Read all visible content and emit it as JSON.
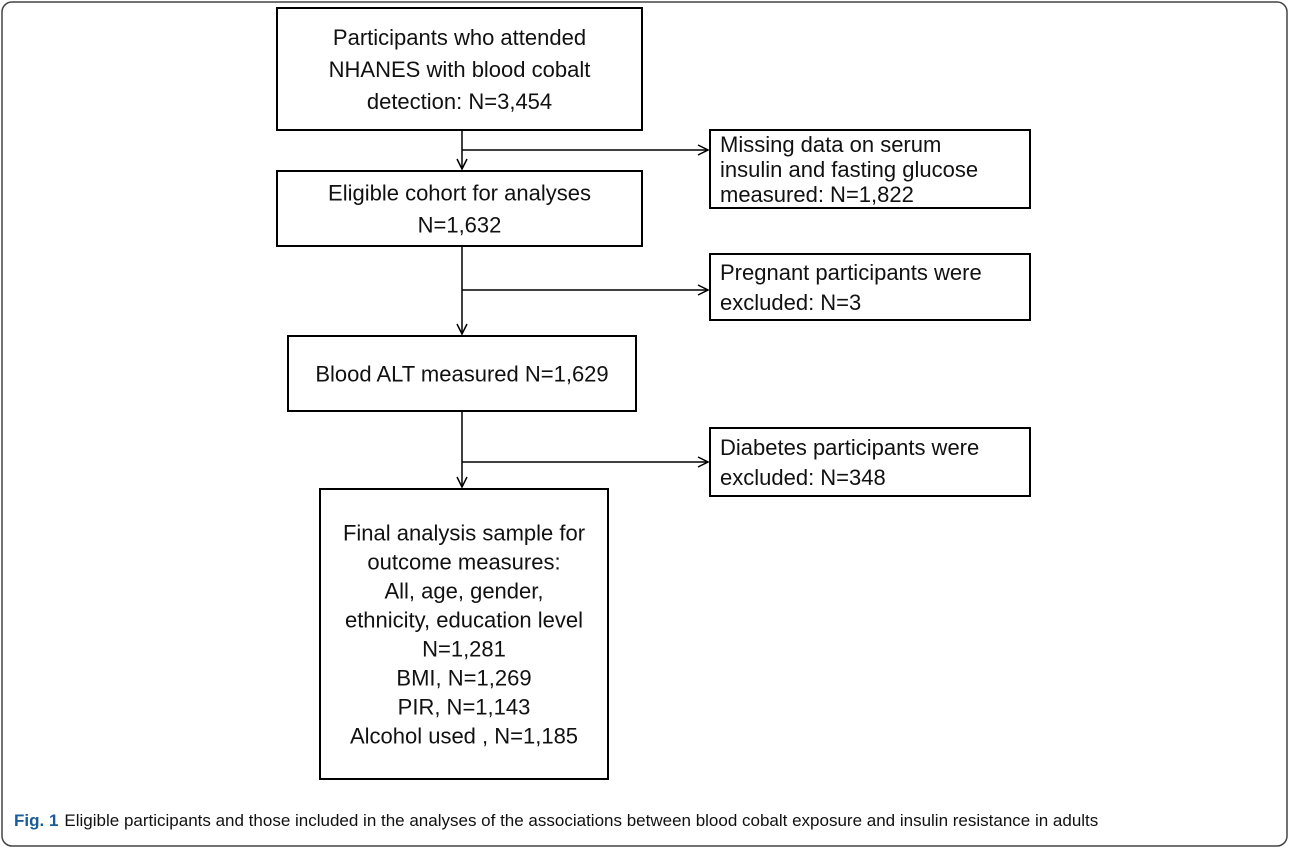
{
  "nodes": [
    {
      "lines": [
        "Participants who attended",
        "NHANES with blood cobalt",
        "detection: N=3,454"
      ]
    },
    {
      "lines": [
        "Eligible cohort for analyses",
        "N=1,632"
      ]
    },
    {
      "lines": [
        "Blood ALT measured N=1,629"
      ]
    },
    {
      "lines": [
        "Final analysis sample for",
        "outcome measures:",
        "All, age,  gender,",
        "ethnicity, education level",
        "N=1,281",
        "BMI, N=1,269",
        "PIR, N=1,143",
        "Alcohol used , N=1,185"
      ]
    }
  ],
  "exclusions": [
    {
      "lines": [
        "Missing data on serum",
        "insulin and fasting glucose",
        "measured: N=1,822"
      ]
    },
    {
      "lines": [
        "Pregnant participants were",
        "excluded: N=3"
      ]
    },
    {
      "lines": [
        "Diabetes participants were",
        "excluded: N=348"
      ]
    }
  ],
  "caption": {
    "label": "Fig. 1",
    "text": "Eligible participants and those included in the analyses of the associations between blood cobalt exposure and insulin resistance in adults"
  }
}
